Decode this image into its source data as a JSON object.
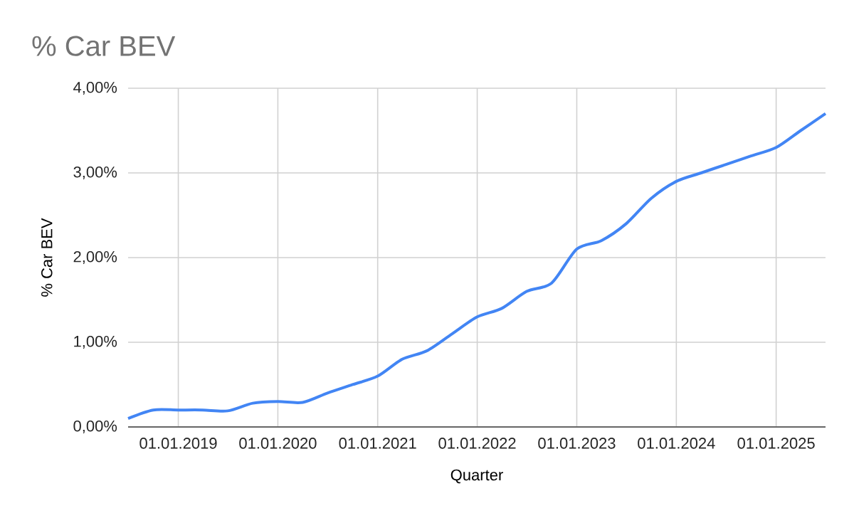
{
  "chart_data": {
    "type": "line",
    "title": "% Car BEV",
    "xlabel": "Quarter",
    "ylabel": "% Car BEV",
    "color": "#4285f4",
    "grid": true,
    "x": [
      "2018-07-01",
      "2018-10-01",
      "2019-01-01",
      "2019-04-01",
      "2019-07-01",
      "2019-10-01",
      "2020-01-01",
      "2020-04-01",
      "2020-07-01",
      "2020-10-01",
      "2021-01-01",
      "2021-04-01",
      "2021-07-01",
      "2021-10-01",
      "2022-01-01",
      "2022-04-01",
      "2022-07-01",
      "2022-10-01",
      "2023-01-01",
      "2023-04-01",
      "2023-07-01",
      "2023-10-01",
      "2024-01-01",
      "2024-04-01",
      "2024-07-01",
      "2024-10-01",
      "2025-01-01",
      "2025-04-01",
      "2025-07-01"
    ],
    "values": [
      0.1,
      0.2,
      0.2,
      0.2,
      0.19,
      0.28,
      0.3,
      0.29,
      0.4,
      0.5,
      0.6,
      0.8,
      0.9,
      1.1,
      1.3,
      1.4,
      1.6,
      1.7,
      2.1,
      2.2,
      2.4,
      2.7,
      2.9,
      3.0,
      3.1,
      3.2,
      3.3,
      3.5,
      3.7
    ],
    "xlim": [
      "2018-07-01",
      "2025-07-01"
    ],
    "xticks": [
      {
        "value": "2019-01-01",
        "label": "01.01.2019"
      },
      {
        "value": "2020-01-01",
        "label": "01.01.2020"
      },
      {
        "value": "2021-01-01",
        "label": "01.01.2021"
      },
      {
        "value": "2022-01-01",
        "label": "01.01.2022"
      },
      {
        "value": "2023-01-01",
        "label": "01.01.2023"
      },
      {
        "value": "2024-01-01",
        "label": "01.01.2024"
      },
      {
        "value": "2025-01-01",
        "label": "01.01.2025"
      }
    ],
    "ylim": [
      0,
      4
    ],
    "yticks": [
      {
        "value": 0,
        "label": "0,00%"
      },
      {
        "value": 1,
        "label": "1,00%"
      },
      {
        "value": 2,
        "label": "2,00%"
      },
      {
        "value": 3,
        "label": "3,00%"
      },
      {
        "value": 4,
        "label": "4,00%"
      }
    ]
  }
}
